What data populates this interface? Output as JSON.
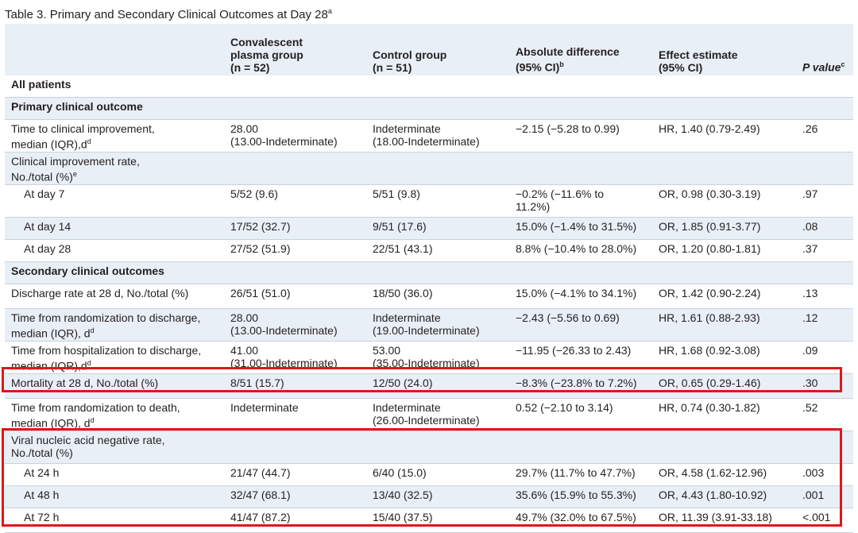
{
  "title": {
    "text": "Table 3. Primary and Secondary Clinical Outcomes at Day 28",
    "sup": "a"
  },
  "headers": {
    "plasma": [
      "Convalescent",
      "plasma group",
      "(n = 52)"
    ],
    "control": [
      "Control group",
      "(n = 51)"
    ],
    "absdiff": [
      "Absolute difference",
      "(95% CI)"
    ],
    "absdiff_sup": "b",
    "effect": [
      "Effect estimate",
      "(95% CI)"
    ],
    "pvalue": "P value",
    "pvalue_sup": "c"
  },
  "rows": [
    {
      "type": "section",
      "label": "All patients"
    },
    {
      "type": "section",
      "label": "Primary clinical outcome"
    },
    {
      "type": "data",
      "label": [
        "Time to clinical improvement,",
        "median (IQR),d"
      ],
      "label_sup": "d",
      "plasma": [
        "28.00",
        "(13.00-Indeterminate)"
      ],
      "control": [
        "Indeterminate",
        "(18.00-Indeterminate)"
      ],
      "absdiff": [
        "−2.15 (−5.28 to 0.99)"
      ],
      "effect": "HR, 1.40 (0.79-2.49)",
      "p": ".26"
    },
    {
      "type": "data",
      "label": [
        "Clinical improvement rate,",
        "No./total (%)"
      ],
      "label_sup": "e",
      "plasma": [],
      "control": [],
      "absdiff": [],
      "effect": "",
      "p": ""
    },
    {
      "type": "data",
      "indent": true,
      "label": [
        "At day 7"
      ],
      "plasma": [
        "5/52 (9.6)"
      ],
      "control": [
        "5/51 (9.8)"
      ],
      "absdiff": [
        "−0.2% (−11.6% to",
        "11.2%)"
      ],
      "effect": "OR, 0.98 (0.30-3.19)",
      "p": ".97"
    },
    {
      "type": "data",
      "indent": true,
      "label": [
        "At day 14"
      ],
      "plasma": [
        "17/52 (32.7)"
      ],
      "control": [
        "9/51 (17.6)"
      ],
      "absdiff": [
        "15.0% (−1.4% to 31.5%)"
      ],
      "effect": "OR, 1.85 (0.91-3.77)",
      "p": ".08"
    },
    {
      "type": "data",
      "indent": true,
      "label": [
        "At day 28"
      ],
      "plasma": [
        "27/52 (51.9)"
      ],
      "control": [
        "22/51 (43.1)"
      ],
      "absdiff": [
        "8.8% (−10.4% to 28.0%)"
      ],
      "effect": "OR, 1.20 (0.80-1.81)",
      "p": ".37"
    },
    {
      "type": "section",
      "label": "Secondary clinical outcomes"
    },
    {
      "type": "data",
      "label": [
        "Discharge rate at 28 d, No./total (%)"
      ],
      "plasma": [
        "26/51 (51.0)"
      ],
      "control": [
        "18/50 (36.0)"
      ],
      "absdiff": [
        "15.0% (−4.1% to 34.1%)"
      ],
      "effect": "OR, 1.42 (0.90-2.24)",
      "p": ".13"
    },
    {
      "type": "data",
      "label": [
        "Time from randomization to discharge,",
        "median (IQR), d"
      ],
      "label_sup": "d",
      "plasma": [
        "28.00",
        "(13.00-Indeterminate)"
      ],
      "control": [
        "Indeterminate",
        "(19.00-Indeterminate)"
      ],
      "absdiff": [
        "−2.43 (−5.56 to 0.69)"
      ],
      "effect": "HR, 1.61 (0.88-2.93)",
      "p": ".12"
    },
    {
      "type": "data",
      "label": [
        "Time from hospitalization to discharge,",
        "median (IQR),d"
      ],
      "label_sup": "d",
      "plasma": [
        "41.00",
        "(31.00-Indeterminate)"
      ],
      "control": [
        "53.00",
        "(35.00-Indeterminate)"
      ],
      "absdiff": [
        "−11.95 (−26.33 to 2.43)"
      ],
      "effect": "HR, 1.68 (0.92-3.08)",
      "p": ".09"
    },
    {
      "type": "data",
      "label": [
        "Mortality at 28 d, No./total (%)"
      ],
      "plasma": [
        "8/51 (15.7)"
      ],
      "control": [
        "12/50 (24.0)"
      ],
      "absdiff": [
        "−8.3% (−23.8% to 7.2%)"
      ],
      "effect": "OR, 0.65 (0.29-1.46)",
      "p": ".30"
    },
    {
      "type": "data",
      "label": [
        "Time from randomization to death,",
        "median (IQR), d"
      ],
      "label_sup": "d",
      "plasma": [
        "Indeterminate"
      ],
      "control": [
        "Indeterminate",
        "(26.00-Indeterminate)"
      ],
      "absdiff": [
        "0.52 (−2.10 to 3.14)"
      ],
      "effect": "HR, 0.74 (0.30-1.82)",
      "p": ".52"
    },
    {
      "type": "data",
      "label": [
        "Viral nucleic acid negative rate,",
        "No./total (%)"
      ],
      "plasma": [],
      "control": [],
      "absdiff": [],
      "effect": "",
      "p": ""
    },
    {
      "type": "data",
      "indent": true,
      "label": [
        "At 24 h"
      ],
      "plasma": [
        "21/47 (44.7)"
      ],
      "control": [
        "6/40 (15.0)"
      ],
      "absdiff": [
        "29.7% (11.7% to 47.7%)"
      ],
      "effect": "OR, 4.58 (1.62-12.96)",
      "p": ".003"
    },
    {
      "type": "data",
      "indent": true,
      "label": [
        "At 48 h"
      ],
      "plasma": [
        "32/47 (68.1)"
      ],
      "control": [
        "13/40 (32.5)"
      ],
      "absdiff": [
        "35.6% (15.9% to 55.3%)"
      ],
      "effect": "OR, 4.43 (1.80-10.92)",
      "p": ".001"
    },
    {
      "type": "data",
      "indent": true,
      "label": [
        "At 72 h"
      ],
      "plasma": [
        "41/47 (87.2)"
      ],
      "control": [
        "15/40 (37.5)"
      ],
      "absdiff": [
        "49.7% (32.0% to 67.5%)"
      ],
      "effect": "OR, 11.39 (3.91-33.18)",
      "p": "<.001"
    }
  ],
  "colors": {
    "row_alt": "#e9eff6",
    "highlight": "#e0161b",
    "text": "#231f20"
  }
}
